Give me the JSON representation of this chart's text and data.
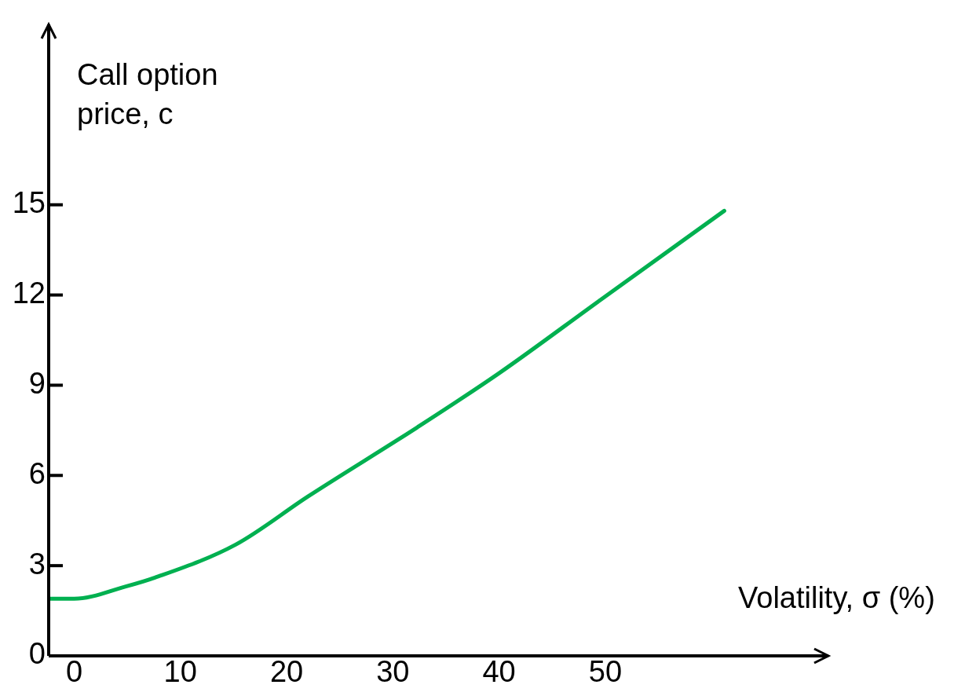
{
  "chart_data": {
    "type": "line",
    "xlabel": "Volatility, σ (%)",
    "ylabel": "Call option price, c",
    "xlim": [
      -2.4,
      71
    ],
    "ylim": [
      0,
      21
    ],
    "xticks": [
      0,
      10,
      20,
      30,
      40,
      50
    ],
    "yticks": [
      0,
      3,
      6,
      9,
      12,
      15
    ],
    "grid": false,
    "legend": false,
    "marker": "none",
    "line_style": "solid",
    "series": [
      {
        "color": "#00b050",
        "x": [
          -2.4,
          0,
          4.8,
          7.6,
          15.2,
          22.0,
          32.3,
          40.0,
          49.4,
          61.2
        ],
        "values": [
          1.9,
          1.9,
          2.3,
          2.6,
          3.7,
          5.3,
          7.6,
          9.4,
          11.8,
          14.8
        ]
      }
    ]
  }
}
